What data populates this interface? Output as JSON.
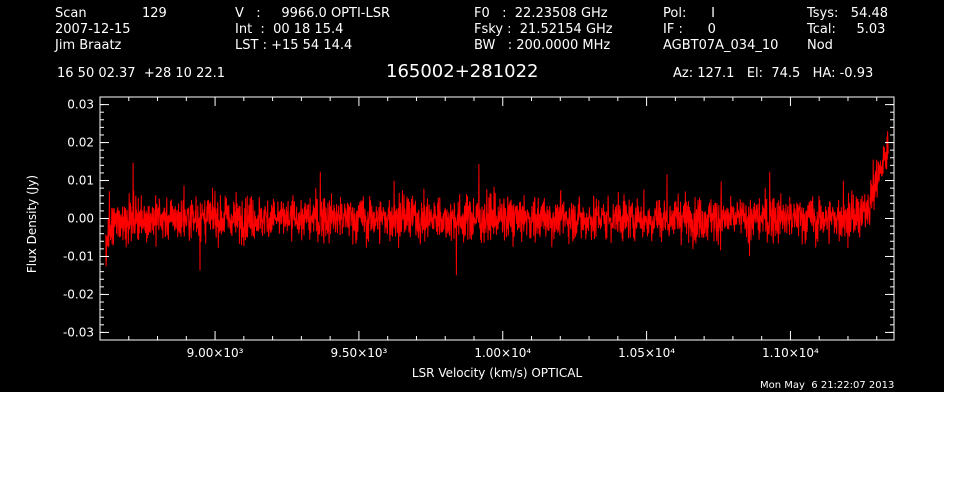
{
  "header": {
    "col1": [
      "Scan",
      "2007-12-15",
      "Jim Braatz"
    ],
    "scan_number": "129",
    "col2": [
      "V   :     9966.0 OPTI-LSR",
      "Int  :  00 18 15.4",
      "LST : +15 54 14.4"
    ],
    "col3": [
      "F0   :  22.23508 GHz",
      "Fsky :  21.52154 GHz",
      "BW   : 200.0000 MHz"
    ],
    "col4": [
      "Pol:      I",
      "IF :      0",
      "AGBT07A_034_10"
    ],
    "col5": [
      "Tsys:   54.48",
      "Tcal:     5.03",
      "Nod"
    ],
    "coords": "16 50 02.37  +28 10 22.1",
    "source": "165002+281022",
    "pointing": "Az: 127.1   El:  74.5   HA: -0.93",
    "timestamp": "Mon May  6 21:22:07 2013"
  },
  "colors": {
    "background": "#000000",
    "axes": "#ffffff",
    "series": "#ff0000"
  },
  "chart_data": {
    "type": "line",
    "xlabel": "LSR Velocity (km/s) OPTICAL",
    "ylabel": "Flux Density (Jy)",
    "xlim": [
      8600,
      11360
    ],
    "ylim": [
      -0.032,
      0.032
    ],
    "xticks": [
      9000,
      9500,
      10000,
      10500,
      11000
    ],
    "xtick_labels": [
      "9.00×10³",
      "9.50×10³",
      "1.00×10⁴",
      "1.05×10⁴",
      "1.10×10⁴"
    ],
    "yticks": [
      -0.03,
      -0.02,
      -0.01,
      0.0,
      0.01,
      0.02,
      0.03
    ],
    "ytick_labels": [
      "-0.03",
      "-0.02",
      "-0.01",
      "0.00",
      "0.01",
      "0.02",
      "0.03"
    ],
    "grid": false,
    "series": [
      {
        "x_start": 8620,
        "x_end": 11340,
        "noise_rms_jy": 0.005,
        "spike_peak_jy": 0.016,
        "spike_trough_jy": -0.021,
        "edge_high_jy": 0.023,
        "edge_high_x": 11335
      }
    ]
  }
}
